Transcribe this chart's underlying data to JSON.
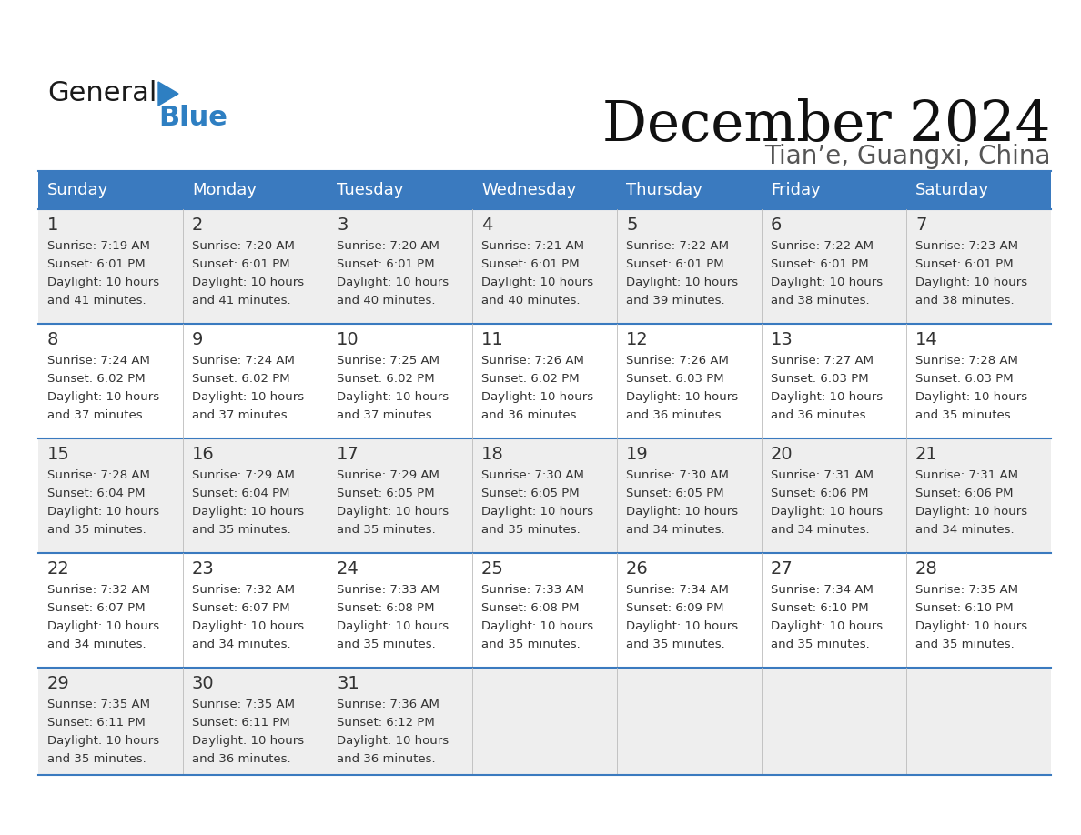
{
  "title": "December 2024",
  "subtitle": "Tian’e, Guangxi, China",
  "header_bg_color": "#3a7abf",
  "header_text_color": "#ffffff",
  "day_names": [
    "Sunday",
    "Monday",
    "Tuesday",
    "Wednesday",
    "Thursday",
    "Friday",
    "Saturday"
  ],
  "row_bg_even": "#eeeeee",
  "row_bg_odd": "#ffffff",
  "divider_color": "#3a7abf",
  "cell_text_color": "#333333",
  "day_num_color": "#333333",
  "logo_general_color": "#1a1a1a",
  "logo_blue_color": "#2e7fc2",
  "weeks": [
    [
      {
        "day": 1,
        "sunrise": "7:19 AM",
        "sunset": "6:01 PM",
        "daylight_hours": 10,
        "daylight_minutes": 41
      },
      {
        "day": 2,
        "sunrise": "7:20 AM",
        "sunset": "6:01 PM",
        "daylight_hours": 10,
        "daylight_minutes": 41
      },
      {
        "day": 3,
        "sunrise": "7:20 AM",
        "sunset": "6:01 PM",
        "daylight_hours": 10,
        "daylight_minutes": 40
      },
      {
        "day": 4,
        "sunrise": "7:21 AM",
        "sunset": "6:01 PM",
        "daylight_hours": 10,
        "daylight_minutes": 40
      },
      {
        "day": 5,
        "sunrise": "7:22 AM",
        "sunset": "6:01 PM",
        "daylight_hours": 10,
        "daylight_minutes": 39
      },
      {
        "day": 6,
        "sunrise": "7:22 AM",
        "sunset": "6:01 PM",
        "daylight_hours": 10,
        "daylight_minutes": 38
      },
      {
        "day": 7,
        "sunrise": "7:23 AM",
        "sunset": "6:01 PM",
        "daylight_hours": 10,
        "daylight_minutes": 38
      }
    ],
    [
      {
        "day": 8,
        "sunrise": "7:24 AM",
        "sunset": "6:02 PM",
        "daylight_hours": 10,
        "daylight_minutes": 37
      },
      {
        "day": 9,
        "sunrise": "7:24 AM",
        "sunset": "6:02 PM",
        "daylight_hours": 10,
        "daylight_minutes": 37
      },
      {
        "day": 10,
        "sunrise": "7:25 AM",
        "sunset": "6:02 PM",
        "daylight_hours": 10,
        "daylight_minutes": 37
      },
      {
        "day": 11,
        "sunrise": "7:26 AM",
        "sunset": "6:02 PM",
        "daylight_hours": 10,
        "daylight_minutes": 36
      },
      {
        "day": 12,
        "sunrise": "7:26 AM",
        "sunset": "6:03 PM",
        "daylight_hours": 10,
        "daylight_minutes": 36
      },
      {
        "day": 13,
        "sunrise": "7:27 AM",
        "sunset": "6:03 PM",
        "daylight_hours": 10,
        "daylight_minutes": 36
      },
      {
        "day": 14,
        "sunrise": "7:28 AM",
        "sunset": "6:03 PM",
        "daylight_hours": 10,
        "daylight_minutes": 35
      }
    ],
    [
      {
        "day": 15,
        "sunrise": "7:28 AM",
        "sunset": "6:04 PM",
        "daylight_hours": 10,
        "daylight_minutes": 35
      },
      {
        "day": 16,
        "sunrise": "7:29 AM",
        "sunset": "6:04 PM",
        "daylight_hours": 10,
        "daylight_minutes": 35
      },
      {
        "day": 17,
        "sunrise": "7:29 AM",
        "sunset": "6:05 PM",
        "daylight_hours": 10,
        "daylight_minutes": 35
      },
      {
        "day": 18,
        "sunrise": "7:30 AM",
        "sunset": "6:05 PM",
        "daylight_hours": 10,
        "daylight_minutes": 35
      },
      {
        "day": 19,
        "sunrise": "7:30 AM",
        "sunset": "6:05 PM",
        "daylight_hours": 10,
        "daylight_minutes": 34
      },
      {
        "day": 20,
        "sunrise": "7:31 AM",
        "sunset": "6:06 PM",
        "daylight_hours": 10,
        "daylight_minutes": 34
      },
      {
        "day": 21,
        "sunrise": "7:31 AM",
        "sunset": "6:06 PM",
        "daylight_hours": 10,
        "daylight_minutes": 34
      }
    ],
    [
      {
        "day": 22,
        "sunrise": "7:32 AM",
        "sunset": "6:07 PM",
        "daylight_hours": 10,
        "daylight_minutes": 34
      },
      {
        "day": 23,
        "sunrise": "7:32 AM",
        "sunset": "6:07 PM",
        "daylight_hours": 10,
        "daylight_minutes": 34
      },
      {
        "day": 24,
        "sunrise": "7:33 AM",
        "sunset": "6:08 PM",
        "daylight_hours": 10,
        "daylight_minutes": 35
      },
      {
        "day": 25,
        "sunrise": "7:33 AM",
        "sunset": "6:08 PM",
        "daylight_hours": 10,
        "daylight_minutes": 35
      },
      {
        "day": 26,
        "sunrise": "7:34 AM",
        "sunset": "6:09 PM",
        "daylight_hours": 10,
        "daylight_minutes": 35
      },
      {
        "day": 27,
        "sunrise": "7:34 AM",
        "sunset": "6:10 PM",
        "daylight_hours": 10,
        "daylight_minutes": 35
      },
      {
        "day": 28,
        "sunrise": "7:35 AM",
        "sunset": "6:10 PM",
        "daylight_hours": 10,
        "daylight_minutes": 35
      }
    ],
    [
      {
        "day": 29,
        "sunrise": "7:35 AM",
        "sunset": "6:11 PM",
        "daylight_hours": 10,
        "daylight_minutes": 35
      },
      {
        "day": 30,
        "sunrise": "7:35 AM",
        "sunset": "6:11 PM",
        "daylight_hours": 10,
        "daylight_minutes": 36
      },
      {
        "day": 31,
        "sunrise": "7:36 AM",
        "sunset": "6:12 PM",
        "daylight_hours": 10,
        "daylight_minutes": 36
      },
      null,
      null,
      null,
      null
    ]
  ]
}
